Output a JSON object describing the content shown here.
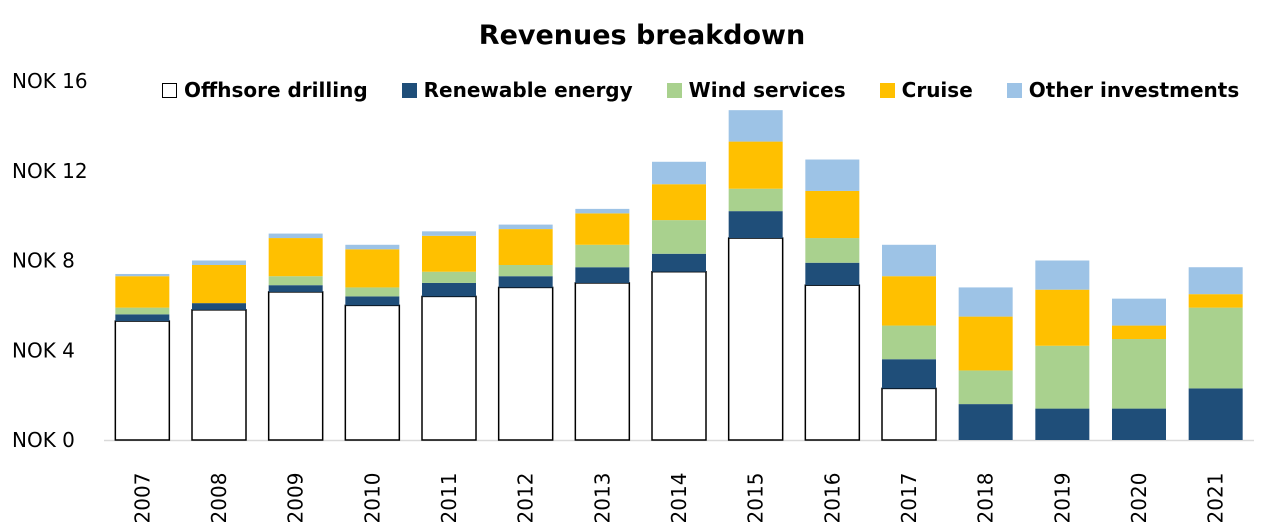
{
  "chart_data": {
    "type": "bar",
    "stacked": true,
    "title": "Revenues breakdown",
    "xlabel": "",
    "ylabel": "",
    "categories": [
      "2007",
      "2008",
      "2009",
      "2010",
      "2011",
      "2012",
      "2013",
      "2014",
      "2015",
      "2016",
      "2017",
      "2018",
      "2019",
      "2020",
      "2021"
    ],
    "ylim": [
      0,
      16
    ],
    "yticks": [
      "NOK 0",
      "NOK 4",
      "NOK 8",
      "NOK 12",
      "NOK 16"
    ],
    "grid": false,
    "legend": "top",
    "series": [
      {
        "name": "Offhsore drilling",
        "color": "#ffffff",
        "stroke": "#000000",
        "values": [
          5.3,
          5.8,
          6.6,
          6.0,
          6.4,
          6.8,
          7.0,
          7.5,
          9.0,
          6.9,
          2.3,
          0,
          0,
          0,
          0
        ]
      },
      {
        "name": "Renewable energy",
        "color": "#1f4e79",
        "values": [
          0.3,
          0.3,
          0.3,
          0.4,
          0.6,
          0.5,
          0.7,
          0.8,
          1.2,
          1.0,
          1.3,
          1.6,
          1.4,
          1.4,
          2.3
        ]
      },
      {
        "name": "Wind services",
        "color": "#a9d18e",
        "values": [
          0.3,
          0,
          0.4,
          0.4,
          0.5,
          0.5,
          1.0,
          1.5,
          1.0,
          1.1,
          1.5,
          1.5,
          2.8,
          3.1,
          3.6
        ]
      },
      {
        "name": "Cruise",
        "color": "#ffc000",
        "values": [
          1.4,
          1.7,
          1.7,
          1.7,
          1.6,
          1.6,
          1.4,
          1.6,
          2.1,
          2.1,
          2.2,
          2.4,
          2.5,
          0.6,
          0.6
        ]
      },
      {
        "name": "Other investments",
        "color": "#9dc3e6",
        "values": [
          0.1,
          0.2,
          0.2,
          0.2,
          0.2,
          0.2,
          0.2,
          1.0,
          1.4,
          1.4,
          1.4,
          1.3,
          1.3,
          1.2,
          1.2
        ]
      }
    ]
  }
}
